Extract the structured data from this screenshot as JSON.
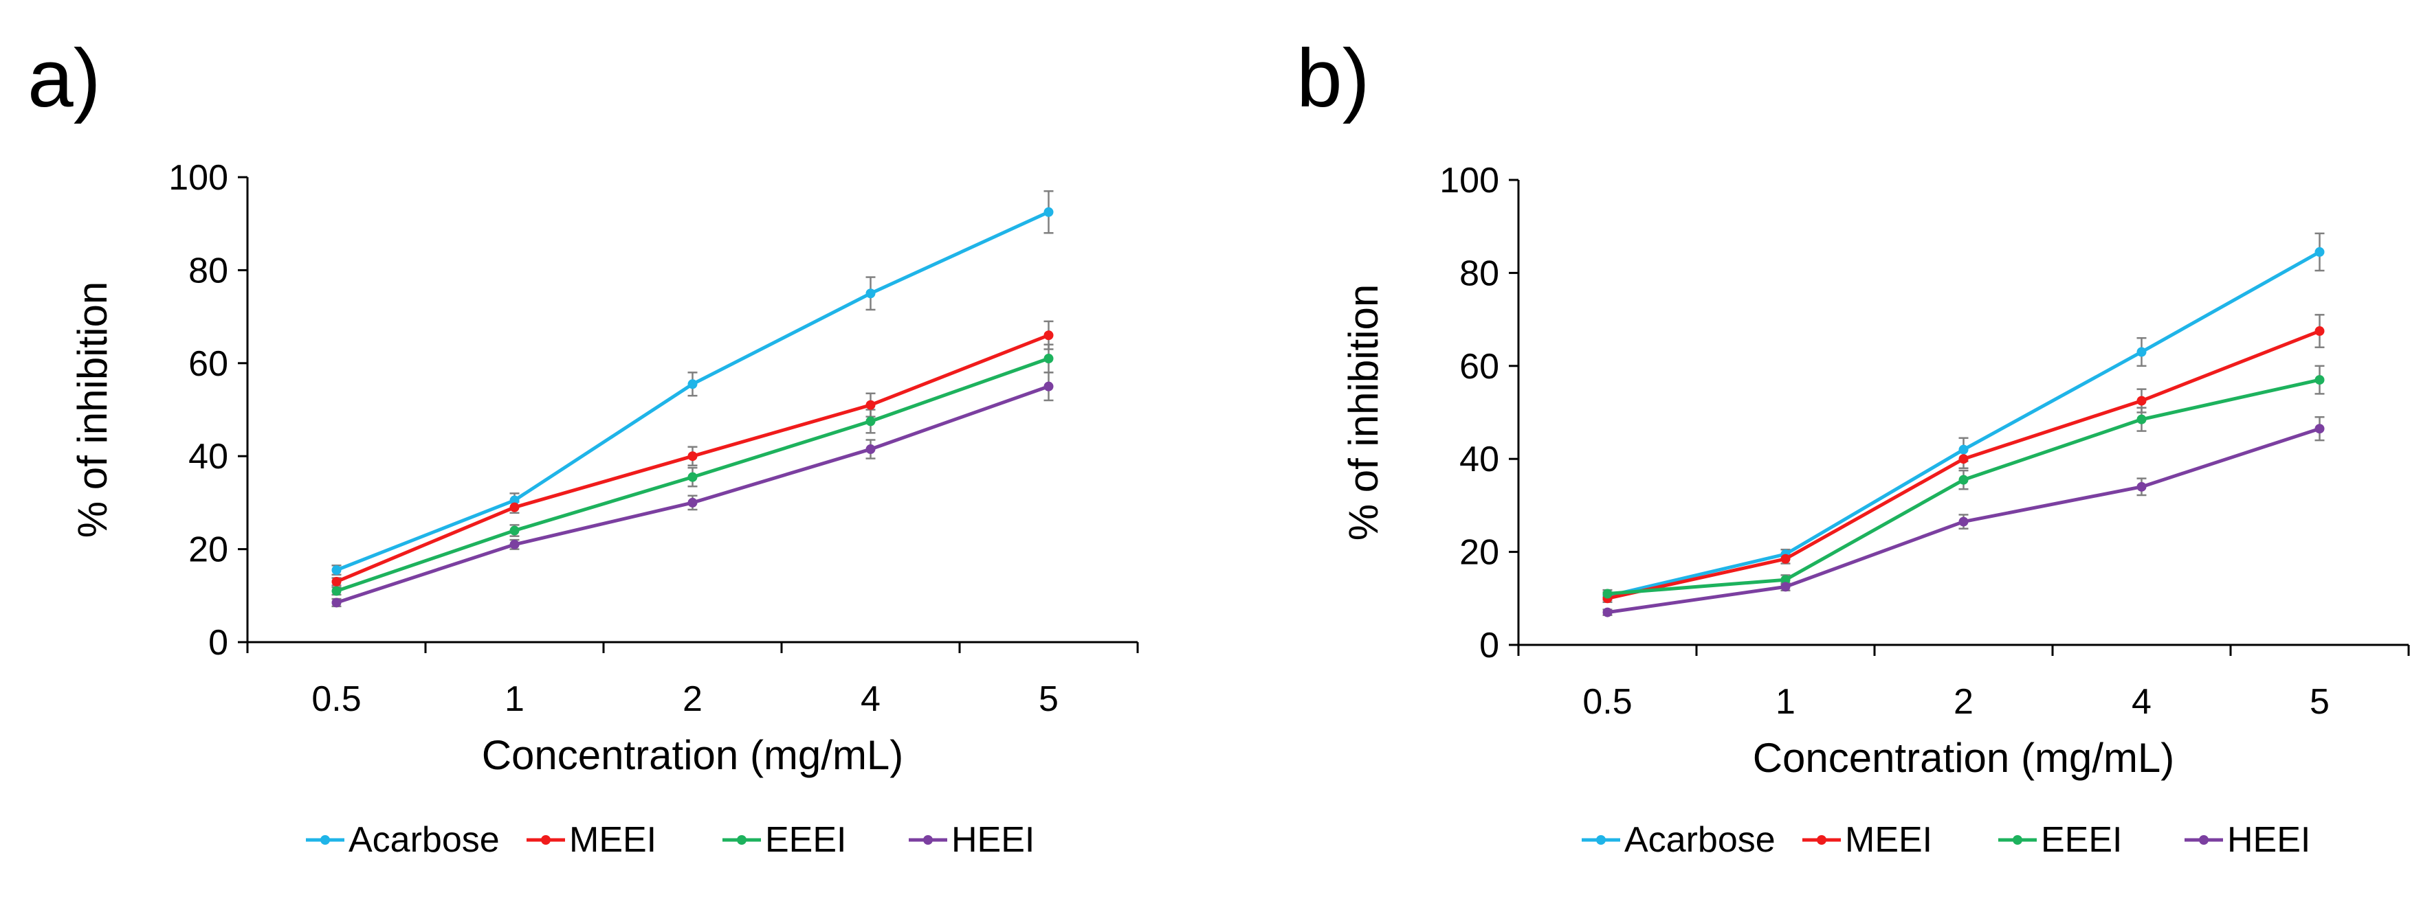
{
  "chart_data": [
    {
      "type": "line",
      "panel_label": "a)",
      "categories": [
        "0.5",
        "1",
        "2",
        "4",
        "5"
      ],
      "xlabel": "Concentration (mg/mL)",
      "ylabel": "% of inhibition",
      "ylim": [
        0,
        100
      ],
      "yticks": [
        0,
        20,
        40,
        60,
        80,
        100
      ],
      "grid": false,
      "legend_position": "bottom",
      "series": [
        {
          "name": "Acarbose",
          "color": "#1fb4e8",
          "values": [
            15.5,
            30.5,
            55.5,
            75.0,
            92.5
          ],
          "errors": [
            1.0,
            1.5,
            2.5,
            3.5,
            4.5
          ]
        },
        {
          "name": "MEEI",
          "color": "#f01b1b",
          "values": [
            13.0,
            29.0,
            40.0,
            51.0,
            66.0
          ],
          "errors": [
            0.8,
            1.2,
            2.0,
            2.5,
            3.0
          ]
        },
        {
          "name": "EEEI",
          "color": "#1db25d",
          "values": [
            11.0,
            24.0,
            35.5,
            47.5,
            61.0
          ],
          "errors": [
            0.8,
            1.2,
            2.0,
            2.5,
            3.0
          ]
        },
        {
          "name": "HEEI",
          "color": "#7b3fa0",
          "values": [
            8.5,
            21.0,
            30.0,
            41.5,
            55.0
          ],
          "errors": [
            0.8,
            1.0,
            1.5,
            2.0,
            3.0
          ]
        }
      ]
    },
    {
      "type": "line",
      "panel_label": "b)",
      "categories": [
        "0.5",
        "1",
        "2",
        "4",
        "5"
      ],
      "xlabel": "Concentration (mg/mL)",
      "ylabel": "% of inhibition",
      "ylim": [
        0,
        100
      ],
      "yticks": [
        0,
        20,
        40,
        60,
        80,
        100
      ],
      "grid": false,
      "legend_position": "bottom",
      "series": [
        {
          "name": "Acarbose",
          "color": "#1fb4e8",
          "values": [
            10.5,
            19.5,
            42.0,
            63.0,
            84.5
          ],
          "errors": [
            0.8,
            1.0,
            2.5,
            3.0,
            4.0
          ]
        },
        {
          "name": "MEEI",
          "color": "#f01b1b",
          "values": [
            10.0,
            18.5,
            40.0,
            52.5,
            67.5
          ],
          "errors": [
            0.8,
            1.0,
            2.0,
            2.5,
            3.5
          ]
        },
        {
          "name": "EEEI",
          "color": "#1db25d",
          "values": [
            11.0,
            14.0,
            35.5,
            48.5,
            57.0
          ],
          "errors": [
            0.8,
            1.0,
            2.0,
            2.5,
            3.0
          ]
        },
        {
          "name": "HEEI",
          "color": "#7b3fa0",
          "values": [
            7.0,
            12.5,
            26.5,
            34.0,
            46.5
          ],
          "errors": [
            0.6,
            0.8,
            1.5,
            1.8,
            2.5
          ]
        }
      ]
    }
  ]
}
